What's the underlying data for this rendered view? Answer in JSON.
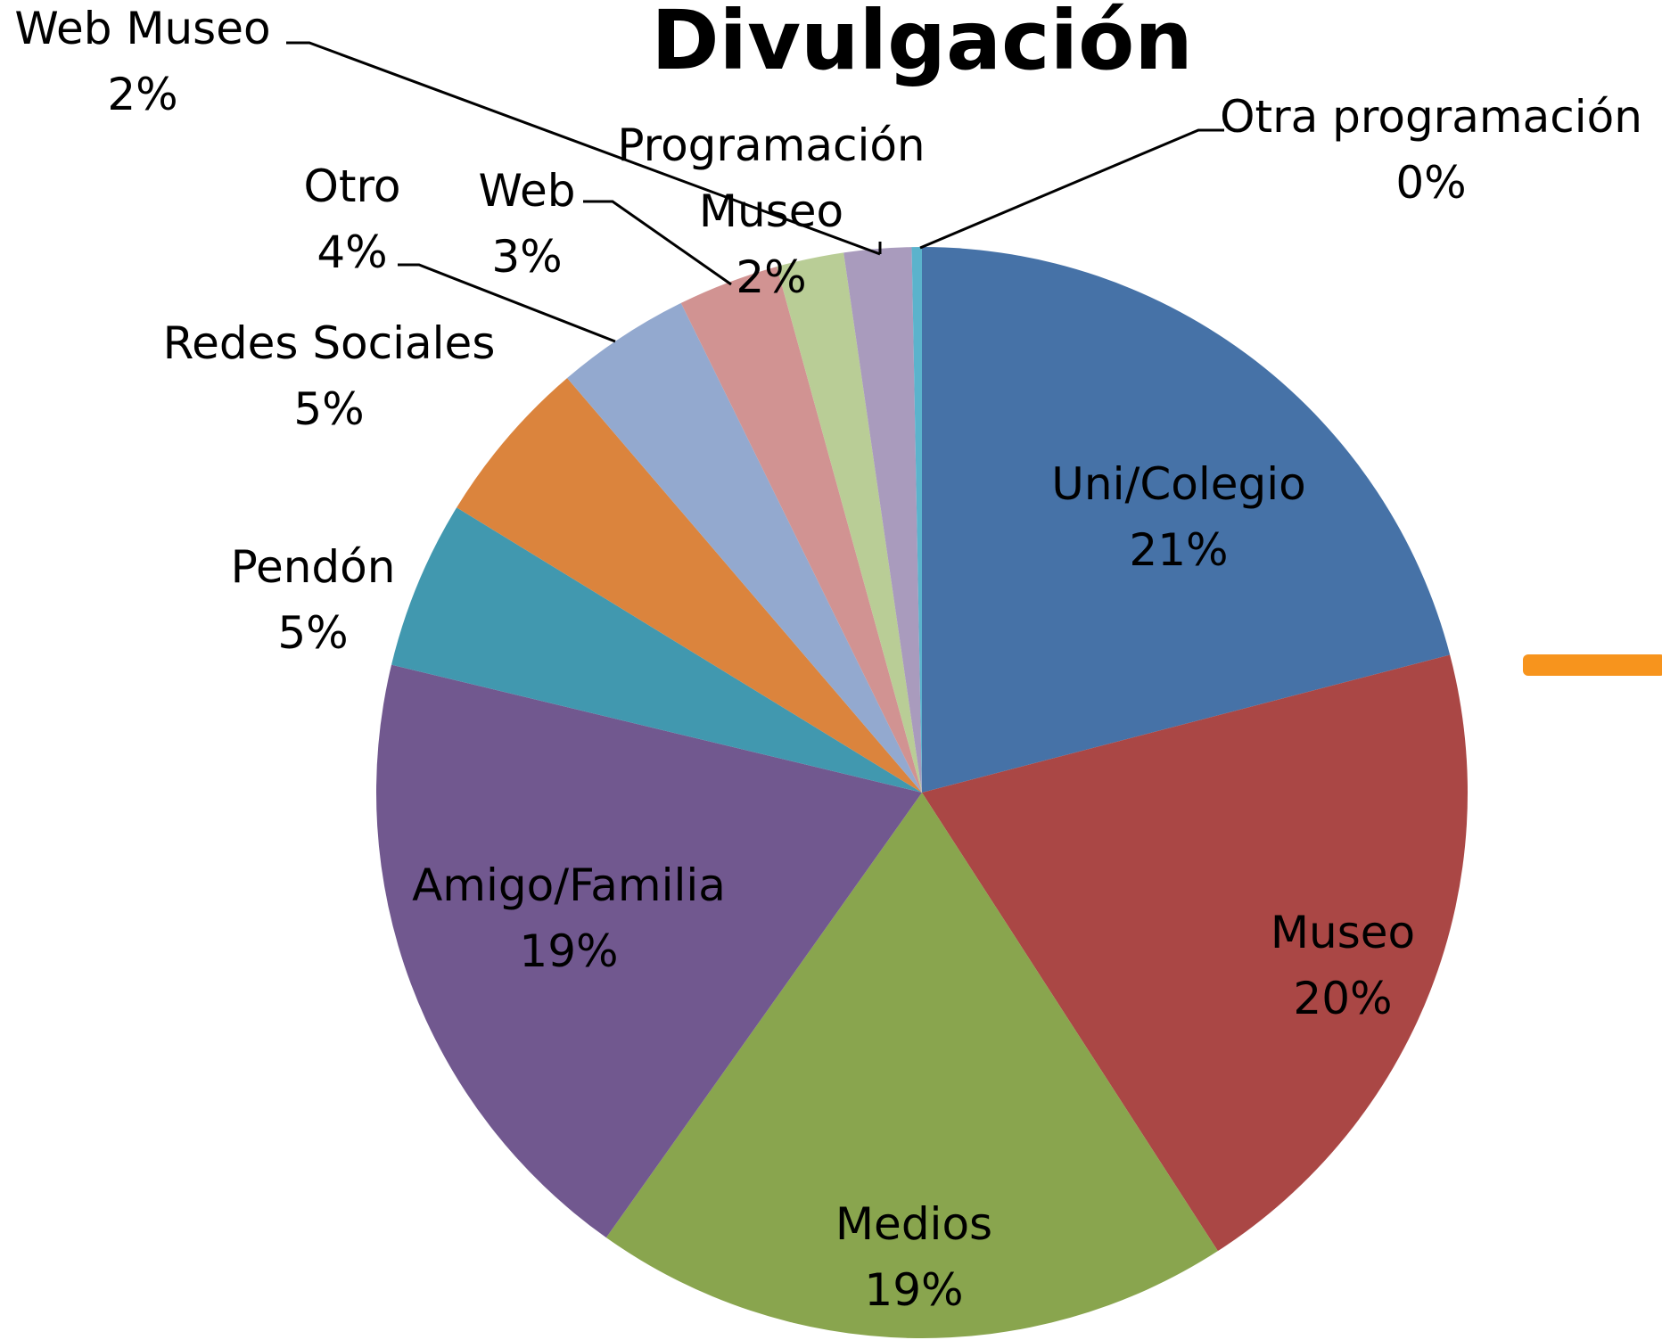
{
  "chart_data": {
    "type": "pie",
    "title": "Divulgación",
    "categories": [
      "Uni/Colegio",
      "Museo",
      "Medios",
      "Amigo/Familia",
      "Pendón",
      "Redes Sociales",
      "Otro",
      "Web",
      "Programación Museo",
      "Web Museo",
      "Otra programación"
    ],
    "values": [
      21,
      20,
      19,
      19,
      5,
      5,
      4,
      3,
      2,
      2,
      0.3
    ],
    "value_labels": [
      "21%",
      "20%",
      "19%",
      "19%",
      "5%",
      "5%",
      "4%",
      "3%",
      "2%",
      "2%",
      "0%"
    ],
    "colors": [
      "#4672a7",
      "#aa4745",
      "#89a54e",
      "#71588f",
      "#4198af",
      "#db843d",
      "#93a9cf",
      "#d19392",
      "#b9cd96",
      "#a99bbd",
      "#5bb3cc"
    ]
  }
}
